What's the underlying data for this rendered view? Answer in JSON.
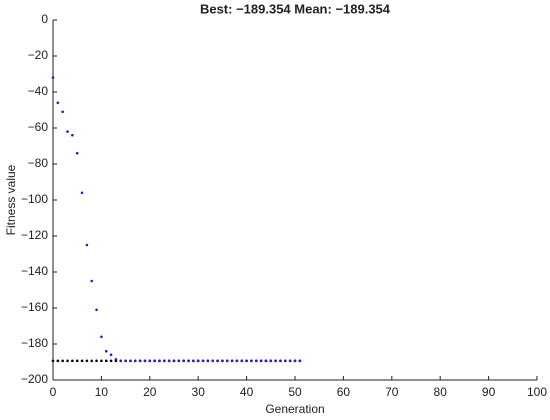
{
  "chart_data": {
    "type": "scatter",
    "title": "Best: −189.354 Mean: −189.354",
    "x_label": "Generation",
    "y_label": "Fitness value",
    "x": [
      0,
      1,
      2,
      3,
      4,
      5,
      6,
      7,
      8,
      9,
      10,
      11,
      12,
      13,
      14,
      15,
      16,
      17,
      18,
      19,
      20,
      21,
      22,
      23,
      24,
      25,
      26,
      27,
      28,
      29,
      30,
      31,
      32,
      33,
      34,
      35,
      36,
      37,
      38,
      39,
      40,
      41,
      42,
      43,
      44,
      45,
      46,
      47,
      48,
      49,
      50,
      51
    ],
    "series": [
      {
        "color": "#000000",
        "values": [
          -189.354,
          -189.354,
          -189.354,
          -189.354,
          -189.354,
          -189.354,
          -189.354,
          -189.354,
          -189.354,
          -189.354,
          -189.354,
          -189.354,
          -189.354,
          -189.354,
          -189.354,
          -189.354,
          -189.354,
          -189.354,
          -189.354,
          -189.354,
          -189.354,
          -189.354,
          -189.354,
          -189.354,
          -189.354,
          -189.354,
          -189.354,
          -189.354,
          -189.354,
          -189.354,
          -189.354,
          -189.354,
          -189.354,
          -189.354,
          -189.354,
          -189.354,
          -189.354,
          -189.354,
          -189.354,
          -189.354,
          -189.354,
          -189.354,
          -189.354,
          -189.354,
          -189.354,
          -189.354,
          -189.354,
          -189.354,
          -189.354,
          -189.354,
          -189.354,
          -189.354
        ]
      },
      {
        "color": "#1f1fcf",
        "values": [
          -32,
          -46,
          -51,
          -62,
          -64,
          -74,
          -96,
          -125,
          -145,
          -161,
          -176,
          -184,
          -186,
          -188.5,
          -189.354,
          -189.354,
          -189.354,
          -189.354,
          -189.354,
          -189.354,
          -189.354,
          -189.354,
          -189.354,
          -189.354,
          -189.354,
          -189.354,
          -189.354,
          -189.354,
          -189.354,
          -189.354,
          -189.354,
          -189.354,
          -189.354,
          -189.354,
          -189.354,
          -189.354,
          -189.354,
          -189.354,
          -189.354,
          -189.354,
          -189.354,
          -189.354,
          -189.354,
          -189.354,
          -189.354,
          -189.354,
          -189.354,
          -189.354,
          -189.354,
          -189.354,
          -189.354,
          -189.354
        ]
      }
    ],
    "xlim": [
      0,
      100
    ],
    "xticks": [
      0,
      10,
      20,
      30,
      40,
      50,
      60,
      70,
      80,
      90,
      100
    ],
    "ylim": [
      -200,
      0
    ],
    "yticks": [
      {
        "value": -200,
        "label": "−200"
      },
      {
        "value": -180,
        "label": "−180"
      },
      {
        "value": -160,
        "label": "−160"
      },
      {
        "value": -140,
        "label": "−140"
      },
      {
        "value": -120,
        "label": "−120"
      },
      {
        "value": -100,
        "label": "−100"
      },
      {
        "value": -80,
        "label": "−80"
      },
      {
        "value": -60,
        "label": "−60"
      },
      {
        "value": -40,
        "label": "−40"
      },
      {
        "value": -20,
        "label": "−20"
      },
      0
    ]
  }
}
